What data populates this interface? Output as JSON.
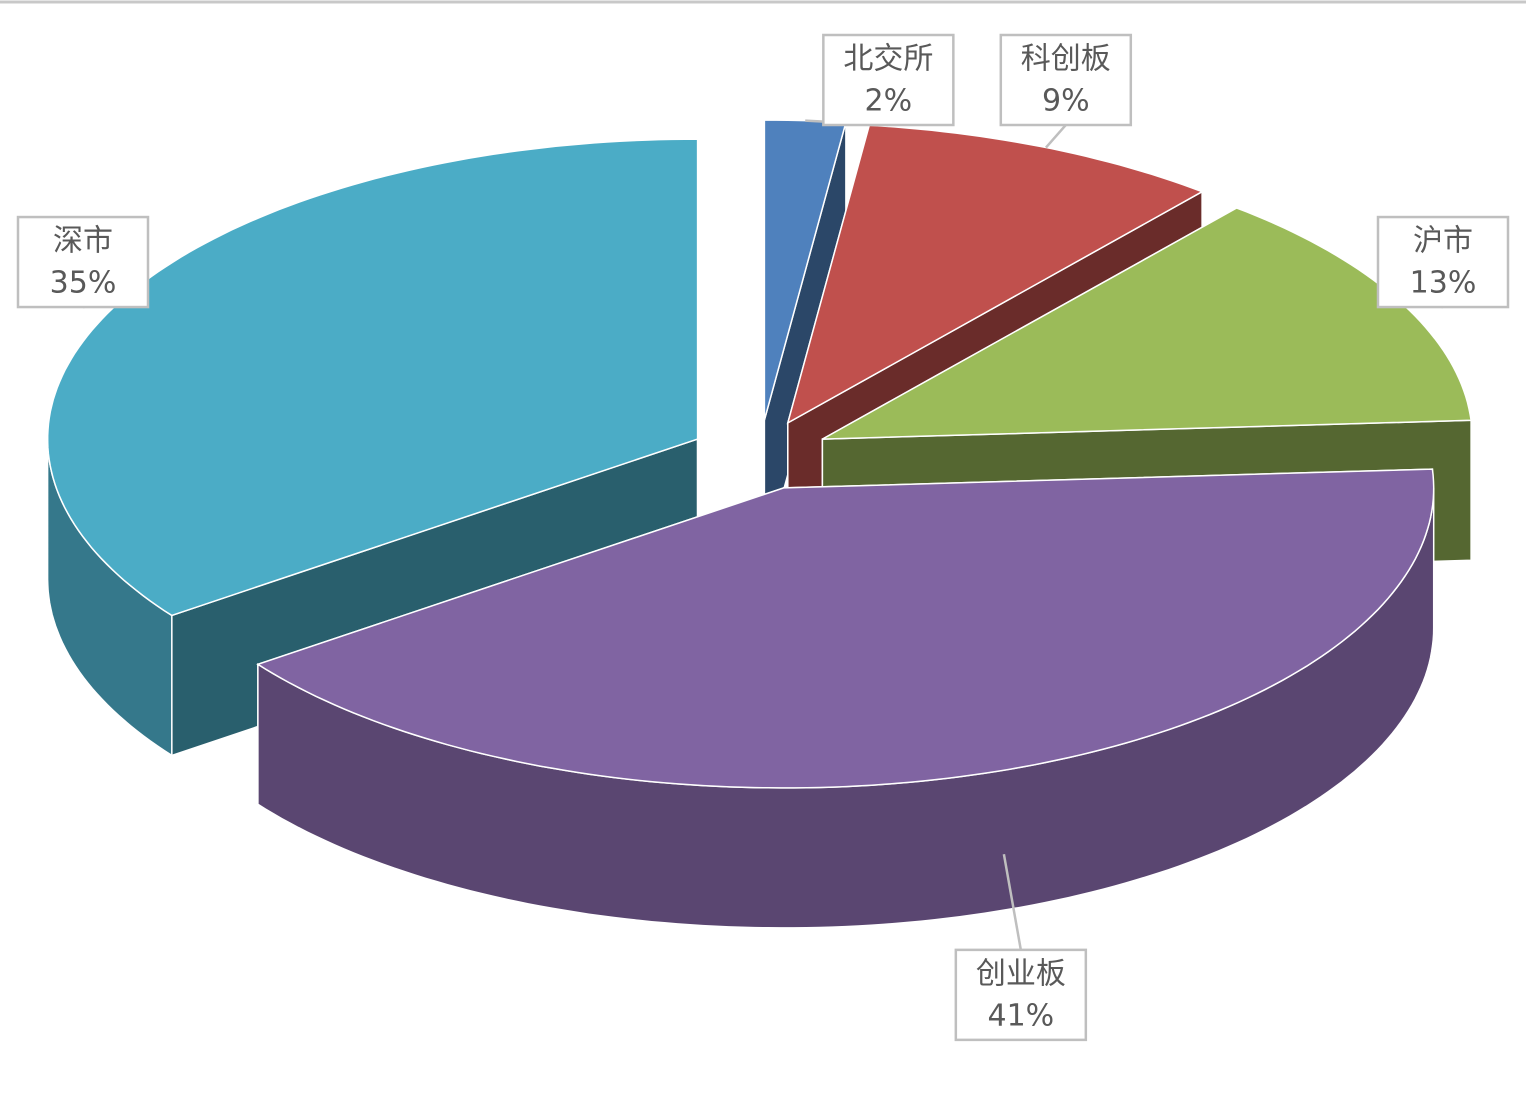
{
  "chart_data": {
    "type": "pie",
    "three_d": true,
    "exploded": true,
    "categories": [
      "北交所",
      "科创板",
      "沪市",
      "创业板",
      "深市"
    ],
    "values": [
      2,
      9,
      13,
      41,
      35
    ],
    "value_labels": [
      "2%",
      "9%",
      "13%",
      "41%",
      "35%"
    ],
    "colors": [
      "#4f81bd",
      "#c0504d",
      "#9bbb59",
      "#8064a2",
      "#4bacc6"
    ]
  }
}
